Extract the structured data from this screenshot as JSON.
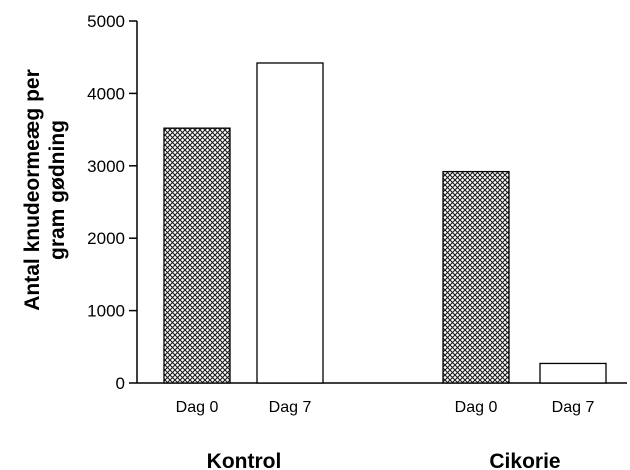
{
  "chart_data": {
    "type": "bar",
    "ylabel_lines": [
      "Antal knudeormeæg per",
      "gram gødning"
    ],
    "ylim": [
      0,
      5000
    ],
    "yticks": [
      0,
      1000,
      2000,
      3000,
      4000,
      5000
    ],
    "grid": false,
    "groups": [
      {
        "name": "Kontrol",
        "bars": [
          {
            "category": "Dag 0",
            "value": 3520,
            "pattern": "crosshatch"
          },
          {
            "category": "Dag 7",
            "value": 4420,
            "pattern": "white"
          }
        ]
      },
      {
        "name": "Cikorie",
        "bars": [
          {
            "category": "Dag 0",
            "value": 2920,
            "pattern": "crosshatch"
          },
          {
            "category": "Dag 7",
            "value": 270,
            "pattern": "white"
          }
        ]
      }
    ]
  }
}
